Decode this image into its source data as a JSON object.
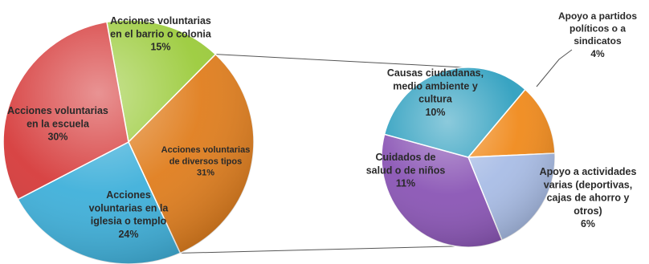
{
  "chart_data": [
    {
      "type": "pie",
      "slices": [
        {
          "label_lines": [
            "Acciones voluntarias",
            "en el barrio o colonia"
          ],
          "value": 15,
          "value_label": "15%",
          "color": "#9BCB3B"
        },
        {
          "label_lines": [
            "Acciones voluntarias",
            "de diversos tipos"
          ],
          "value": 31,
          "value_label": "31%",
          "color": "#E07E1E"
        },
        {
          "label_lines": [
            "Acciones",
            "voluntarias en la",
            "iglesia o templo"
          ],
          "value": 24,
          "value_label": "24%",
          "color": "#3FB0DA"
        },
        {
          "label_lines": [
            "Acciones voluntarias",
            "en la escuela"
          ],
          "value": 30,
          "value_label": "30%",
          "color": "#D63B3B"
        }
      ]
    },
    {
      "type": "pie",
      "slices": [
        {
          "label_lines": [
            "Apoyo a partidos",
            "políticos o a",
            "sindicatos"
          ],
          "value": 4,
          "value_label": "4%",
          "color": "#F08A1C"
        },
        {
          "label_lines": [
            "Apoyo a actividades",
            "varias (deportivas,",
            "cajas de ahorro y",
            "otros)"
          ],
          "value": 6,
          "value_label": "6%",
          "color": "#A9BDE6"
        },
        {
          "label_lines": [
            "Cuidados de",
            "salud o de niños"
          ],
          "value": 11,
          "value_label": "11%",
          "color": "#8A55B5"
        },
        {
          "label_lines": [
            "Causas ciudadanas,",
            "medio ambiente y",
            "cultura"
          ],
          "value": 10,
          "value_label": "10%",
          "color": "#2E9FBF"
        }
      ]
    }
  ]
}
